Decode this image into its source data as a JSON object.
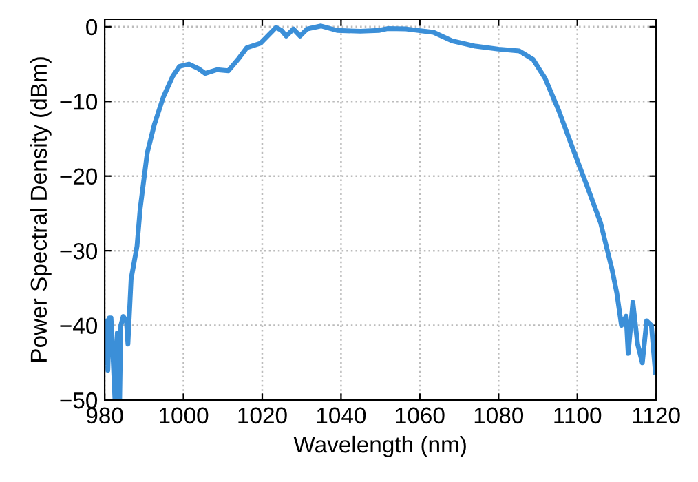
{
  "chart_data": {
    "type": "line",
    "xlabel": "Wavelength (nm)",
    "ylabel": "Power Spectral Density (dBm)",
    "xlim": [
      980,
      1120
    ],
    "ylim": [
      -50,
      1
    ],
    "xticks": [
      980,
      1000,
      1020,
      1040,
      1060,
      1080,
      1100,
      1120
    ],
    "yticks": [
      {
        "value": -50,
        "label": "−50"
      },
      {
        "value": -40,
        "label": "−40"
      },
      {
        "value": -30,
        "label": "−30"
      },
      {
        "value": -20,
        "label": "−20"
      },
      {
        "value": -10,
        "label": "−10"
      },
      0
    ],
    "grid": true,
    "line_style": "solid",
    "marker": "none",
    "series": [
      {
        "color": "#3b8fd8",
        "x": [
          980,
          980.5,
          980.8,
          981.2,
          981.6,
          982.1,
          982.6,
          983.2,
          983.8,
          984.1,
          984.7,
          985.5,
          985.9,
          986.7,
          988.2,
          989,
          990.8,
          992.6,
          994.9,
          997.3,
          999,
          1001.4,
          1003.8,
          1005.5,
          1008.5,
          1011.4,
          1013.8,
          1016.1,
          1019.6,
          1022,
          1023.5,
          1024.9,
          1026.1,
          1027.9,
          1029.6,
          1031.4,
          1034.9,
          1039,
          1044.9,
          1049.6,
          1051.8,
          1056.5,
          1063.5,
          1068.2,
          1074.1,
          1080,
          1085.3,
          1088.8,
          1091.8,
          1095.3,
          1098.8,
          1102.4,
          1105.9,
          1108.8,
          1110,
          1111.2,
          1112.4,
          1112.9,
          1114.1,
          1115.3,
          1116.5,
          1117.6,
          1118.8,
          1119.8
        ],
        "values": [
          -45,
          -39.4,
          -46,
          -39,
          -39,
          -44,
          -50,
          -41,
          -50,
          -40,
          -38.8,
          -39.4,
          -42.5,
          -33.8,
          -29.4,
          -24.4,
          -16.9,
          -13.1,
          -9.4,
          -6.6,
          -5.3,
          -5,
          -5.6,
          -6.25,
          -5.75,
          -5.9,
          -4.4,
          -2.8,
          -2.2,
          -0.9,
          -0.1,
          -0.5,
          -1.25,
          -0.3,
          -1.25,
          -0.3,
          0.1,
          -0.5,
          -0.6,
          -0.5,
          -0.25,
          -0.3,
          -0.75,
          -1.9,
          -2.6,
          -3,
          -3.25,
          -4.4,
          -6.9,
          -11.25,
          -16.25,
          -21.25,
          -26.25,
          -32.5,
          -35.6,
          -40,
          -38.75,
          -43.75,
          -36.9,
          -42.5,
          -45,
          -39.4,
          -40,
          -46.25
        ]
      }
    ]
  }
}
